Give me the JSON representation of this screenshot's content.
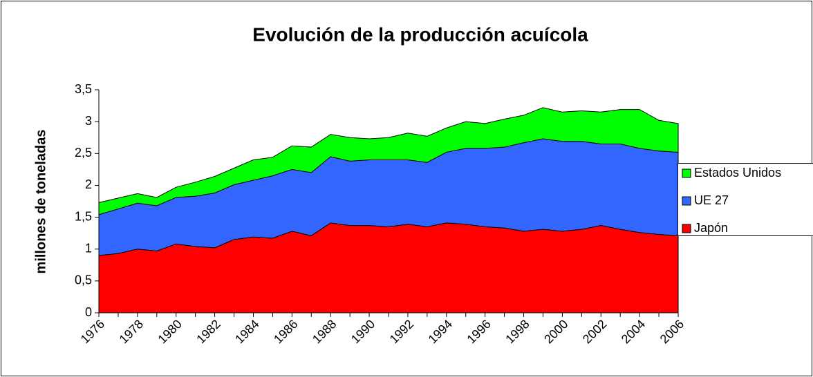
{
  "chart_data": {
    "type": "area",
    "stacked": true,
    "title": "Evolución de la producción acuícola",
    "y_label": "millones de toneladas",
    "categories": [
      "1976",
      null,
      "1978",
      null,
      "1980",
      null,
      "1982",
      null,
      "1984",
      null,
      "1986",
      null,
      "1988",
      null,
      "1990",
      null,
      "1992",
      null,
      "1994",
      null,
      "1996",
      null,
      "1998",
      null,
      "2000",
      null,
      "2002",
      null,
      "2004",
      null,
      "2006"
    ],
    "series": [
      {
        "name": "Japón",
        "color": "#ff0000",
        "values": [
          0.9,
          0.93,
          1.0,
          0.97,
          1.08,
          1.04,
          1.02,
          1.15,
          1.19,
          1.17,
          1.28,
          1.21,
          1.41,
          1.37,
          1.37,
          1.35,
          1.39,
          1.35,
          1.41,
          1.39,
          1.35,
          1.33,
          1.28,
          1.31,
          1.28,
          1.31,
          1.37,
          1.31,
          1.26,
          1.23,
          1.21
        ]
      },
      {
        "name": "UE 27",
        "color": "#3366ff",
        "values": [
          0.64,
          0.7,
          0.72,
          0.71,
          0.73,
          0.79,
          0.86,
          0.86,
          0.89,
          0.98,
          0.97,
          0.99,
          1.04,
          1.01,
          1.03,
          1.05,
          1.01,
          1.01,
          1.11,
          1.19,
          1.23,
          1.27,
          1.39,
          1.42,
          1.41,
          1.38,
          1.28,
          1.34,
          1.32,
          1.31,
          1.31
        ]
      },
      {
        "name": "Estados Unidos",
        "color": "#00ff00",
        "values": [
          0.19,
          0.17,
          0.15,
          0.13,
          0.16,
          0.22,
          0.26,
          0.26,
          0.32,
          0.29,
          0.37,
          0.4,
          0.35,
          0.37,
          0.33,
          0.35,
          0.42,
          0.41,
          0.38,
          0.42,
          0.39,
          0.44,
          0.43,
          0.49,
          0.46,
          0.48,
          0.5,
          0.54,
          0.61,
          0.48,
          0.45
        ]
      }
    ],
    "ylim": [
      0,
      3.5
    ],
    "yticks": [
      0,
      {
        "value": 0.5,
        "label": "0,5"
      },
      1,
      {
        "value": 1.5,
        "label": "1,5"
      },
      2,
      {
        "value": 2.5,
        "label": "2,5"
      },
      3,
      {
        "value": 3.5,
        "label": "3,5"
      }
    ],
    "grid": false,
    "legend": "right"
  }
}
